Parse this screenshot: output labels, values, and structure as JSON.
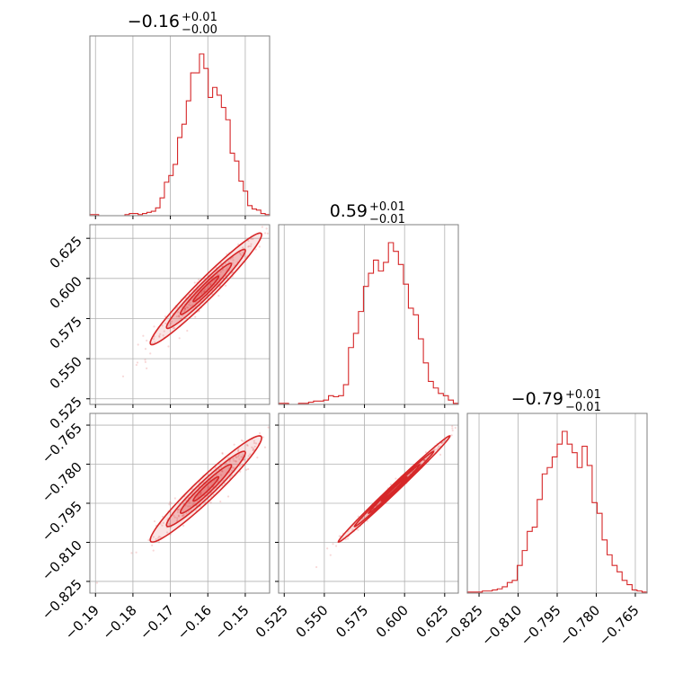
{
  "colors": {
    "series": "#d62728",
    "grid": "#b0b0b0",
    "frame": "#7f7f7f"
  },
  "chart_data": {
    "type": "corner",
    "grid": true,
    "titles": [
      {
        "value": "−0.16",
        "plus": "+0.01",
        "minus": "−0.00"
      },
      {
        "value": "0.59",
        "plus": "+0.01",
        "minus": "−0.01"
      },
      {
        "value": "−0.79",
        "plus": "+0.01",
        "minus": "−0.01"
      }
    ],
    "axes": [
      {
        "range": [
          -0.1915,
          -0.1435
        ],
        "ticks": [
          -0.19,
          -0.18,
          -0.17,
          -0.16,
          -0.15
        ],
        "tick_labels": [
          "−0.19",
          "−0.18",
          "−0.17",
          "−0.16",
          "−0.15"
        ]
      },
      {
        "range": [
          0.5215,
          0.6335
        ],
        "ticks": [
          0.525,
          0.55,
          0.575,
          0.6,
          0.625
        ],
        "tick_labels": [
          "0.525",
          "0.550",
          "0.575",
          "0.600",
          "0.625"
        ]
      },
      {
        "range": [
          -0.8295,
          -0.7605
        ],
        "ticks": [
          -0.825,
          -0.81,
          -0.795,
          -0.78,
          -0.765
        ],
        "tick_labels": [
          "−0.825",
          "−0.810",
          "−0.795",
          "−0.780",
          "−0.765"
        ]
      }
    ],
    "histograms": [
      {
        "counts": [
          1,
          1,
          0,
          0,
          0,
          0,
          0,
          0,
          1,
          2,
          2,
          1,
          2,
          3,
          4,
          7,
          16,
          30,
          36,
          46,
          70,
          82,
          103,
          128,
          128,
          145,
          132,
          106,
          115,
          108,
          97,
          86,
          56,
          49,
          31,
          22,
          9,
          6,
          5,
          2,
          1
        ]
      },
      {
        "counts": [
          1,
          1,
          0,
          0,
          1,
          1,
          2,
          3,
          3,
          4,
          8,
          7,
          8,
          18,
          52,
          65,
          85,
          108,
          120,
          132,
          122,
          130,
          148,
          140,
          128,
          110,
          88,
          82,
          60,
          38,
          21,
          15,
          10,
          8,
          4,
          1
        ]
      },
      {
        "counts": [
          1,
          1,
          1,
          2,
          2,
          3,
          4,
          6,
          10,
          12,
          26,
          40,
          58,
          62,
          88,
          112,
          118,
          128,
          140,
          152,
          140,
          132,
          118,
          138,
          120,
          85,
          75,
          50,
          36,
          26,
          20,
          12,
          8,
          3,
          2,
          1
        ]
      }
    ],
    "correlations": [
      {
        "pair": [
          1,
          0
        ],
        "center": [
          -0.1605,
          0.5935
        ],
        "sd": [
          0.0062,
          0.0145
        ],
        "rho": 0.97
      },
      {
        "pair": [
          2,
          0
        ],
        "center": [
          -0.1605,
          -0.7895
        ],
        "sd": [
          0.0062,
          0.0085
        ],
        "rho": 0.96
      },
      {
        "pair": [
          2,
          1
        ],
        "center": [
          0.5935,
          -0.7895
        ],
        "sd": [
          0.0145,
          0.0085
        ],
        "rho": 0.995
      }
    ]
  }
}
